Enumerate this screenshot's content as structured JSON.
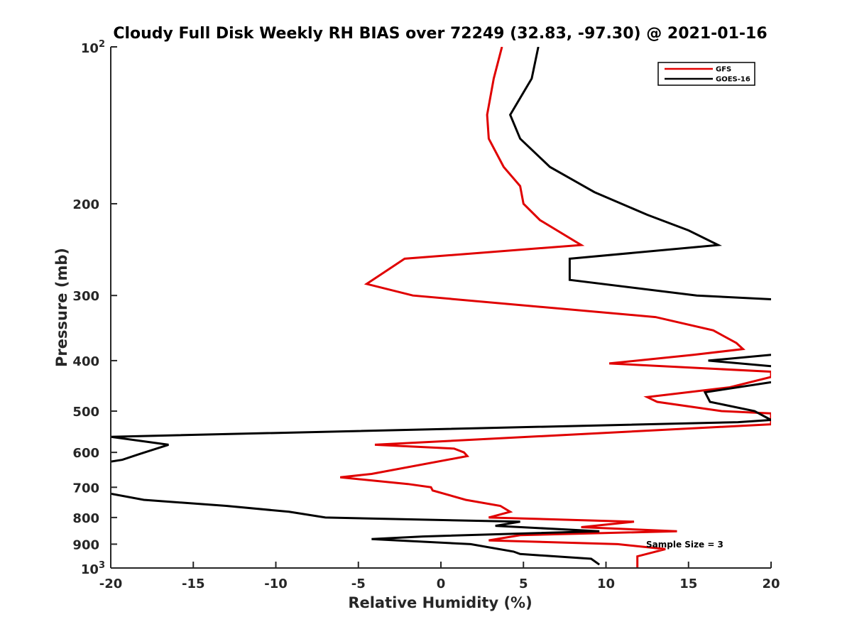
{
  "chart_data": {
    "type": "line",
    "title": "Cloudy Full Disk Weekly RH BIAS over 72249 (32.83, -97.30) @ 2021-01-16",
    "xlabel": "Relative Humidity (%)",
    "ylabel": "Pressure (mb)",
    "xlim": [
      -20,
      20
    ],
    "ylim": [
      100,
      1000
    ],
    "y_scale": "log",
    "y_reversed": true,
    "grid": false,
    "legend_position": "top-right",
    "x_ticks": [
      "-20",
      "-15",
      "-10",
      "-5",
      "0",
      "5",
      "10",
      "15",
      "20"
    ],
    "y_ticks": [
      {
        "value": 100,
        "base": "10",
        "exp": "2"
      },
      {
        "value": 200,
        "label": "200"
      },
      {
        "value": 300,
        "label": "300"
      },
      {
        "value": 400,
        "label": "400"
      },
      {
        "value": 500,
        "label": "500"
      },
      {
        "value": 600,
        "label": "600"
      },
      {
        "value": 700,
        "label": "700"
      },
      {
        "value": 800,
        "label": "800"
      },
      {
        "value": 900,
        "label": "900"
      },
      {
        "value": 1000,
        "base": "10",
        "exp": "3"
      }
    ],
    "annotation": "Sample Size = 3",
    "series": [
      {
        "name": "GFS",
        "color": "#e00000",
        "points": [
          [
            3.7,
            100
          ],
          [
            3.2,
            115
          ],
          [
            2.8,
            135
          ],
          [
            2.9,
            150
          ],
          [
            3.8,
            170
          ],
          [
            4.8,
            185
          ],
          [
            5.0,
            200
          ],
          [
            6.0,
            215
          ],
          [
            8.5,
            240
          ],
          [
            -2.2,
            255
          ],
          [
            -4.5,
            285
          ],
          [
            -1.7,
            300
          ],
          [
            13.0,
            330
          ],
          [
            16.5,
            350
          ],
          [
            17.9,
            370
          ],
          [
            18.3,
            380
          ],
          [
            15.3,
            390
          ],
          [
            10.2,
            405
          ],
          [
            20.0,
            420
          ],
          [
            20.0,
            430
          ],
          [
            17.5,
            450
          ],
          [
            12.5,
            470
          ],
          [
            13.1,
            480
          ],
          [
            17.0,
            500
          ],
          [
            20.0,
            505
          ],
          [
            20.0,
            530
          ],
          [
            -4.0,
            580
          ],
          [
            0.8,
            590
          ],
          [
            1.4,
            600
          ],
          [
            1.6,
            610
          ],
          [
            -4.2,
            660
          ],
          [
            -6.1,
            670
          ],
          [
            -2.0,
            690
          ],
          [
            -0.6,
            700
          ],
          [
            -0.5,
            710
          ],
          [
            1.5,
            740
          ],
          [
            3.6,
            760
          ],
          [
            4.2,
            780
          ],
          [
            2.9,
            800
          ],
          [
            11.7,
            815
          ],
          [
            8.5,
            835
          ],
          [
            14.3,
            850
          ],
          [
            4.8,
            865
          ],
          [
            2.9,
            885
          ],
          [
            10.7,
            900
          ],
          [
            13.6,
            920
          ],
          [
            11.9,
            950
          ],
          [
            11.9,
            1000
          ]
        ]
      },
      {
        "name": "GOES-16",
        "color": "#000000",
        "points": [
          [
            5.9,
            100
          ],
          [
            5.5,
            115
          ],
          [
            4.2,
            135
          ],
          [
            4.8,
            150
          ],
          [
            6.6,
            170
          ],
          [
            9.3,
            190
          ],
          [
            12.5,
            210
          ],
          [
            15.0,
            225
          ],
          [
            16.8,
            240
          ],
          [
            7.8,
            255
          ],
          [
            7.8,
            280
          ],
          [
            15.5,
            300
          ],
          [
            20.0,
            305
          ],
          null,
          [
            20.0,
            390
          ],
          [
            16.2,
            400
          ],
          [
            20.0,
            410
          ],
          null,
          [
            20.0,
            440
          ],
          [
            16.0,
            460
          ],
          [
            16.3,
            480
          ],
          [
            19.0,
            500
          ],
          [
            20.0,
            520
          ],
          [
            18.0,
            525
          ],
          [
            -20.0,
            560
          ],
          [
            -16.5,
            580
          ],
          [
            -18.3,
            605
          ],
          [
            -19.3,
            620
          ],
          [
            -20.0,
            625
          ],
          null,
          [
            -20.0,
            720
          ],
          [
            -18.0,
            740
          ],
          [
            -13.0,
            760
          ],
          [
            -9.2,
            780
          ],
          [
            -7.0,
            800
          ],
          [
            4.8,
            815
          ],
          [
            3.3,
            830
          ],
          [
            9.6,
            850
          ],
          [
            -1.1,
            870
          ],
          [
            -4.2,
            880
          ],
          [
            1.8,
            900
          ],
          [
            4.4,
            930
          ],
          [
            4.8,
            940
          ],
          [
            9.1,
            960
          ],
          [
            9.6,
            985
          ]
        ]
      }
    ]
  }
}
